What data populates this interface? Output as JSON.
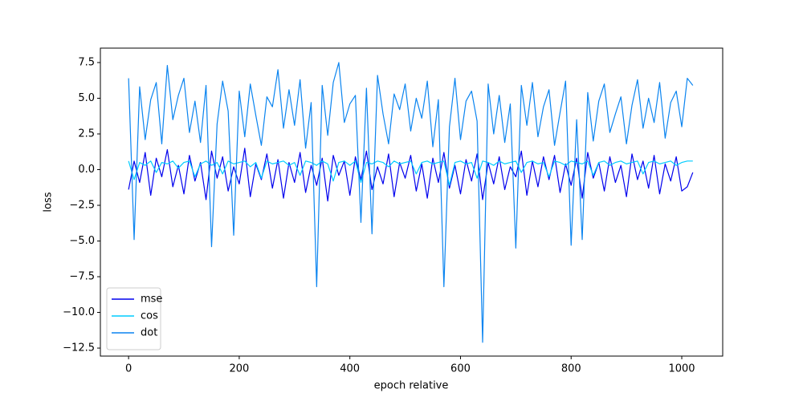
{
  "chart_data": {
    "type": "line",
    "xlabel": "epoch relative",
    "ylabel": "loss",
    "legend": "lower left",
    "xlim": [
      -51,
      1074
    ],
    "ylim": [
      -13.06,
      8.51
    ],
    "xticks": [
      0,
      200,
      400,
      600,
      800,
      1000
    ],
    "yticks": [
      {
        "value": -12.5,
        "label": "−12.5"
      },
      {
        "value": -10,
        "label": "−10.0"
      },
      {
        "value": -7.5,
        "label": "−7.5"
      },
      {
        "value": -5,
        "label": "−5.0"
      },
      {
        "value": -2.5,
        "label": "−2.5"
      },
      {
        "value": 0,
        "label": "0.0"
      },
      2.5,
      {
        "value": 5,
        "label": "5.0"
      },
      7.5
    ],
    "x": [
      0,
      10,
      20,
      30,
      40,
      50,
      60,
      70,
      80,
      90,
      100,
      110,
      120,
      130,
      140,
      150,
      160,
      170,
      180,
      190,
      200,
      210,
      220,
      230,
      240,
      250,
      260,
      270,
      280,
      290,
      300,
      310,
      320,
      330,
      340,
      350,
      360,
      370,
      380,
      390,
      400,
      410,
      420,
      430,
      440,
      450,
      460,
      470,
      480,
      490,
      500,
      510,
      520,
      530,
      540,
      550,
      560,
      570,
      580,
      590,
      600,
      610,
      620,
      630,
      640,
      650,
      660,
      670,
      680,
      690,
      700,
      710,
      720,
      730,
      740,
      750,
      760,
      770,
      780,
      790,
      800,
      810,
      820,
      830,
      840,
      850,
      860,
      870,
      880,
      890,
      900,
      910,
      920,
      930,
      940,
      950,
      960,
      970,
      980,
      990,
      1000,
      1010,
      1020
    ],
    "series": [
      {
        "name": "mse",
        "color": "#0000ee",
        "values": [
          -1.4,
          0.6,
          -0.9,
          1.2,
          -1.8,
          0.8,
          -0.5,
          1.4,
          -1.2,
          0.3,
          -1.7,
          1.0,
          -0.8,
          0.5,
          -2.1,
          1.3,
          -0.6,
          0.9,
          -1.5,
          0.2,
          -1.0,
          1.5,
          -1.9,
          0.4,
          -0.7,
          1.1,
          -1.3,
          0.7,
          -2.0,
          0.5,
          -0.9,
          1.2,
          -1.6,
          0.3,
          -1.1,
          0.8,
          -2.2,
          1.0,
          -0.4,
          0.6,
          -1.8,
          0.9,
          -0.7,
          1.3,
          -1.4,
          0.2,
          -1.0,
          1.1,
          -1.9,
          0.5,
          -0.6,
          1.0,
          -1.5,
          0.4,
          -2.0,
          0.8,
          -0.9,
          1.2,
          -1.3,
          0.3,
          -1.7,
          0.7,
          -0.8,
          1.1,
          -2.1,
          0.5,
          -1.0,
          0.9,
          -1.4,
          0.2,
          -0.5,
          1.3,
          -1.8,
          0.6,
          -1.2,
          0.9,
          -0.7,
          1.0,
          -1.6,
          0.4,
          -1.1,
          0.8,
          -2.0,
          1.2,
          -0.6,
          0.5,
          -1.5,
          0.9,
          -0.9,
          0.3,
          -1.9,
          1.1,
          -0.7,
          0.6,
          -1.3,
          1.0,
          -1.7,
          0.4,
          -0.8,
          0.9,
          -1.5,
          -1.2,
          -0.2
        ]
      },
      {
        "name": "cos",
        "color": "#00ccff",
        "values": [
          0.6,
          -0.7,
          0.5,
          0.3,
          0.6,
          -0.2,
          0.5,
          0.4,
          0.6,
          0.1,
          0.5,
          0.6,
          -0.5,
          0.4,
          0.6,
          0.3,
          0.5,
          -0.3,
          0.6,
          0.4,
          0.5,
          0.6,
          0.2,
          0.5,
          -0.6,
          0.6,
          0.4,
          0.5,
          0.6,
          0.3,
          0.5,
          -0.4,
          0.6,
          0.5,
          0.3,
          0.6,
          0.4,
          -0.8,
          0.5,
          0.6,
          0.3,
          0.6,
          -0.9,
          0.5,
          0.4,
          0.6,
          0.5,
          0.2,
          0.6,
          0.4,
          0.5,
          0.6,
          -0.3,
          0.5,
          0.6,
          0.4,
          0.5,
          0.6,
          -1.1,
          0.5,
          0.6,
          0.4,
          0.5,
          -0.6,
          0.6,
          0.5,
          0.3,
          0.6,
          0.4,
          0.5,
          0.6,
          -0.2,
          0.5,
          0.6,
          0.4,
          0.5,
          -0.5,
          0.6,
          0.5,
          0.3,
          0.6,
          0.5,
          0.4,
          0.6,
          -0.4,
          0.5,
          0.6,
          0.3,
          0.5,
          0.6,
          0.4,
          0.5,
          0.6,
          -0.3,
          0.5,
          0.6,
          0.4,
          0.5,
          0.6,
          0.3,
          0.5,
          0.6,
          0.6
        ]
      },
      {
        "name": "dot",
        "color": "#0a84f0",
        "values": [
          6.4,
          -4.9,
          5.8,
          2.1,
          4.9,
          6.1,
          1.8,
          7.3,
          3.5,
          5.2,
          6.4,
          2.6,
          4.8,
          1.9,
          5.9,
          -5.4,
          3.2,
          6.2,
          4.1,
          -4.6,
          5.5,
          2.3,
          6.0,
          3.8,
          1.7,
          5.1,
          4.4,
          7.0,
          2.9,
          5.6,
          3.1,
          6.3,
          1.5,
          4.7,
          -8.2,
          5.9,
          2.4,
          6.1,
          7.5,
          3.3,
          4.6,
          5.2,
          -3.7,
          5.7,
          -4.5,
          6.6,
          3.9,
          1.8,
          5.3,
          4.2,
          6.0,
          2.7,
          5.0,
          3.6,
          6.2,
          1.6,
          4.9,
          -8.2,
          3.0,
          6.4,
          2.1,
          4.8,
          5.5,
          3.4,
          -12.1,
          6.0,
          2.5,
          5.2,
          1.9,
          4.6,
          -5.5,
          5.9,
          3.1,
          6.1,
          2.3,
          4.4,
          5.6,
          1.7,
          4.0,
          6.2,
          -5.3,
          3.5,
          -4.9,
          5.4,
          2.0,
          4.8,
          6.0,
          2.6,
          3.9,
          5.1,
          1.8,
          4.5,
          6.3,
          2.9,
          5.0,
          3.3,
          6.1,
          2.2,
          4.7,
          5.5,
          3.0,
          6.4,
          5.9
        ]
      }
    ]
  }
}
